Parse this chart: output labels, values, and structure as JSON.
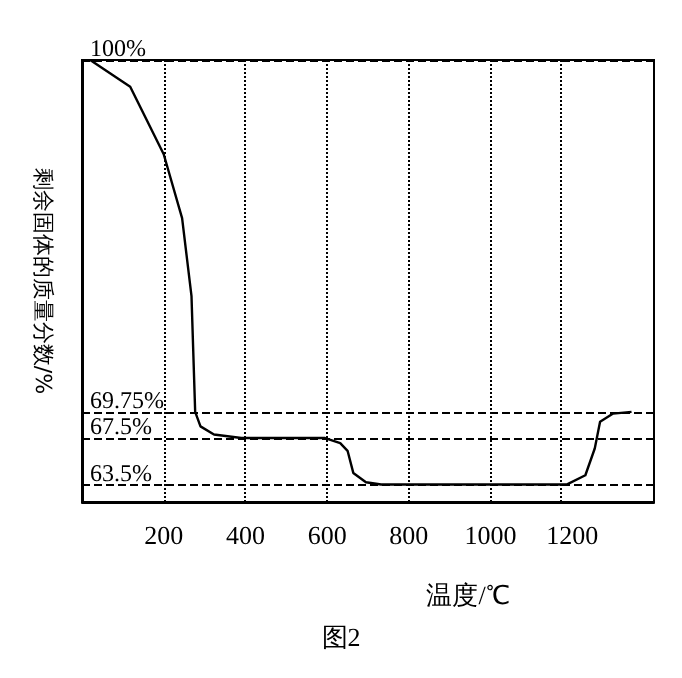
{
  "chart_data": {
    "type": "line",
    "xlabel": "温度/℃",
    "ylabel": "剩余固体的质量分数/%",
    "x": [
      20,
      118,
      200,
      245,
      268,
      277,
      290,
      323,
      390,
      595,
      632,
      650,
      664,
      695,
      732,
      1186,
      1232,
      1255,
      1268,
      1300,
      1345
    ],
    "series": [
      {
        "color": "#000000",
        "values": [
          100,
          97.7,
          91.9,
          86.4,
          79.7,
          69.75,
          68.5,
          67.8,
          67.5,
          67.5,
          67.06,
          66.4,
          64.5,
          63.7,
          63.5,
          63.5,
          64.3,
          66.6,
          68.9,
          69.6,
          69.75
        ]
      }
    ],
    "xlim": [
      0,
      1400
    ],
    "xticks": [
      200,
      400,
      600,
      800,
      1000,
      1200
    ],
    "ylim": [
      62,
      100
    ],
    "yticks": [
      {
        "value": 63.5,
        "label": "63.5%"
      },
      {
        "value": 67.5,
        "label": "67.5%"
      },
      {
        "value": 69.75,
        "label": "69.75%"
      },
      {
        "value": 100,
        "label": "100%"
      }
    ],
    "marker": "none",
    "line_style": "solid",
    "grid": "y",
    "ref_lines": [
      {
        "axis": "x",
        "value": 200,
        "color": "#000000",
        "line_style": "dotted"
      },
      {
        "axis": "x",
        "value": 400,
        "color": "#000000",
        "line_style": "dotted"
      },
      {
        "axis": "x",
        "value": 600,
        "color": "#000000",
        "line_style": "dotted"
      },
      {
        "axis": "x",
        "value": 800,
        "color": "#000000",
        "line_style": "dotted"
      },
      {
        "axis": "x",
        "value": 1000,
        "color": "#000000",
        "line_style": "dotted"
      },
      {
        "axis": "x",
        "value": 1170,
        "color": "#000000",
        "line_style": "dotted"
      }
    ],
    "annotations": [
      "图2"
    ]
  }
}
